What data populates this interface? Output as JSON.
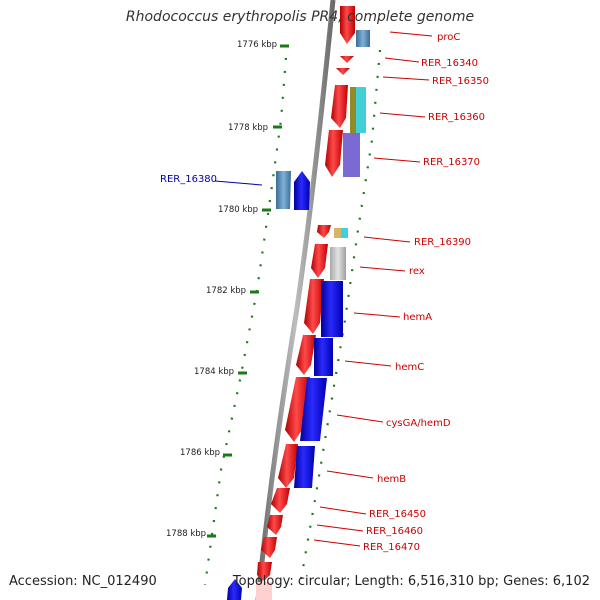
{
  "title": "Rhodococcus erythropolis PR4, complete genome",
  "accession_label": "Accession: NC_012490",
  "topology_label": "Topology: circular; Length: 6,516,310 bp; Genes: 6,102",
  "colors": {
    "forward_gene": "#ff0000",
    "reverse_gene": "#0000ff",
    "highlight_gene": "#0000aa",
    "label_red": "#cc0000",
    "label_blue": "#0000aa",
    "backbone": "#888888",
    "tick": "#1a7a1a"
  },
  "kbp_ticks": [
    {
      "label": "1776 kbp"
    },
    {
      "label": "1778 kbp"
    },
    {
      "label": "1780 kbp"
    },
    {
      "label": "1782 kbp"
    },
    {
      "label": "1784 kbp"
    },
    {
      "label": "1786 kbp"
    },
    {
      "label": "1788 kbp"
    }
  ],
  "gene_labels": [
    {
      "name": "proC",
      "color": "red"
    },
    {
      "name": "RER_16340",
      "color": "red"
    },
    {
      "name": "RER_16350",
      "color": "red"
    },
    {
      "name": "RER_16360",
      "color": "red"
    },
    {
      "name": "RER_16370",
      "color": "red"
    },
    {
      "name": "RER_16380",
      "color": "blue"
    },
    {
      "name": "RER_16390",
      "color": "red"
    },
    {
      "name": "rex",
      "color": "red"
    },
    {
      "name": "hemA",
      "color": "red"
    },
    {
      "name": "hemC",
      "color": "red"
    },
    {
      "name": "cysGA/hemD",
      "color": "red"
    },
    {
      "name": "hemB",
      "color": "red"
    },
    {
      "name": "RER_16450",
      "color": "red"
    },
    {
      "name": "RER_16460",
      "color": "red"
    },
    {
      "name": "RER_16470",
      "color": "red"
    }
  ]
}
